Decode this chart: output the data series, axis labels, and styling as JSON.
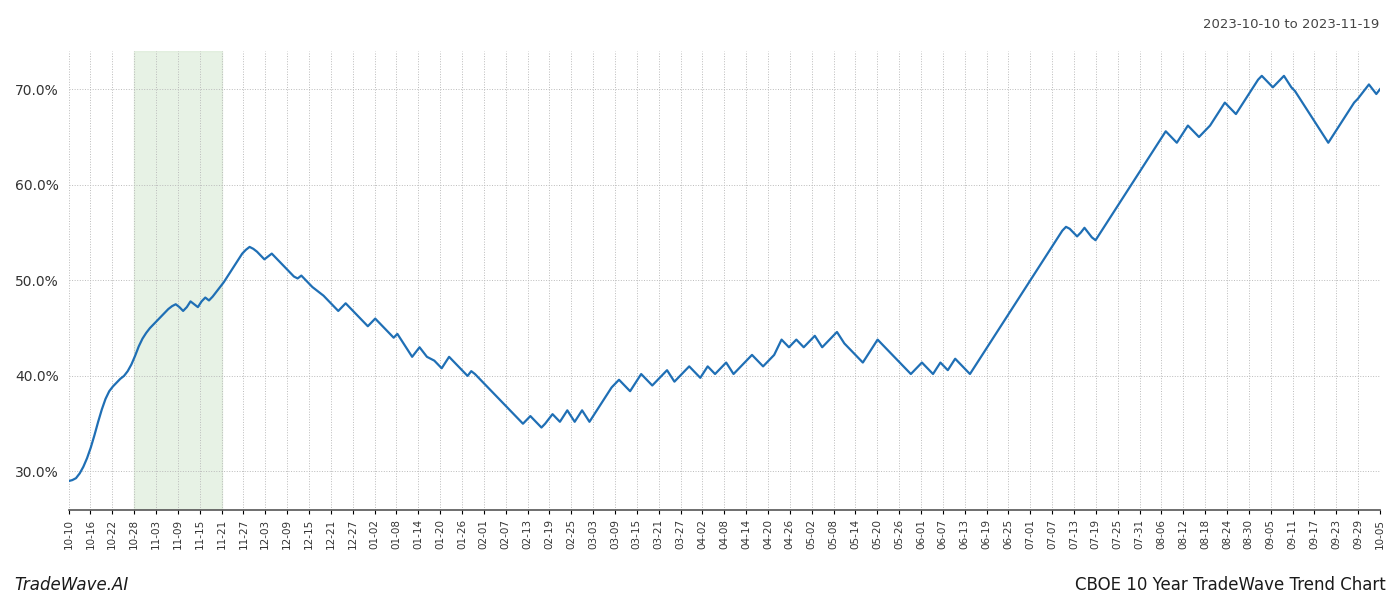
{
  "title_top_right": "2023-10-10 to 2023-11-19",
  "title_bottom_left": "TradeWave.AI",
  "title_bottom_right": "CBOE 10 Year TradeWave Trend Chart",
  "line_color": "#1f6fb5",
  "line_width": 1.6,
  "background_color": "#ffffff",
  "grid_color": "#bbbbbb",
  "shade_color": "#d5e8d0",
  "shade_alpha": 0.55,
  "ylim": [
    26.0,
    74.0
  ],
  "y_ticks": [
    30.0,
    40.0,
    50.0,
    60.0,
    70.0
  ],
  "x_labels": [
    "10-10",
    "10-16",
    "10-22",
    "10-28",
    "11-03",
    "11-09",
    "11-15",
    "11-21",
    "11-27",
    "12-03",
    "12-09",
    "12-15",
    "12-21",
    "12-27",
    "01-02",
    "01-08",
    "01-14",
    "01-20",
    "01-26",
    "02-01",
    "02-07",
    "02-13",
    "02-19",
    "02-25",
    "03-03",
    "03-09",
    "03-15",
    "03-21",
    "03-27",
    "04-02",
    "04-08",
    "04-14",
    "04-20",
    "04-26",
    "05-02",
    "05-08",
    "05-14",
    "05-20",
    "05-26",
    "06-01",
    "06-07",
    "06-13",
    "06-19",
    "06-25",
    "07-01",
    "07-07",
    "07-13",
    "07-19",
    "07-25",
    "07-31",
    "08-06",
    "08-12",
    "08-18",
    "08-24",
    "08-30",
    "09-05",
    "09-11",
    "09-17",
    "09-23",
    "09-29",
    "10-05"
  ],
  "shade_x_start_label": "10-28",
  "shade_x_end_label": "11-21",
  "y_values": [
    29.0,
    29.1,
    29.3,
    29.8,
    30.5,
    31.4,
    32.5,
    33.8,
    35.2,
    36.5,
    37.6,
    38.4,
    38.9,
    39.3,
    39.7,
    40.0,
    40.5,
    41.2,
    42.1,
    43.1,
    43.9,
    44.5,
    45.0,
    45.4,
    45.8,
    46.2,
    46.6,
    47.0,
    47.3,
    47.5,
    47.2,
    46.8,
    47.2,
    47.8,
    47.5,
    47.2,
    47.8,
    48.2,
    47.9,
    48.3,
    48.8,
    49.3,
    49.8,
    50.4,
    51.0,
    51.6,
    52.2,
    52.8,
    53.2,
    53.5,
    53.3,
    53.0,
    52.6,
    52.2,
    52.5,
    52.8,
    52.4,
    52.0,
    51.6,
    51.2,
    50.8,
    50.4,
    50.2,
    50.5,
    50.1,
    49.7,
    49.3,
    49.0,
    48.7,
    48.4,
    48.0,
    47.6,
    47.2,
    46.8,
    47.2,
    47.6,
    47.2,
    46.8,
    46.4,
    46.0,
    45.6,
    45.2,
    45.6,
    46.0,
    45.6,
    45.2,
    44.8,
    44.4,
    44.0,
    44.4,
    43.8,
    43.2,
    42.6,
    42.0,
    42.5,
    43.0,
    42.5,
    42.0,
    41.8,
    41.6,
    41.2,
    40.8,
    41.4,
    42.0,
    41.6,
    41.2,
    40.8,
    40.4,
    40.0,
    40.5,
    40.2,
    39.8,
    39.4,
    39.0,
    38.6,
    38.2,
    37.8,
    37.4,
    37.0,
    36.6,
    36.2,
    35.8,
    35.4,
    35.0,
    35.4,
    35.8,
    35.4,
    35.0,
    34.6,
    35.0,
    35.5,
    36.0,
    35.6,
    35.2,
    35.8,
    36.4,
    35.8,
    35.2,
    35.8,
    36.4,
    35.8,
    35.2,
    35.8,
    36.4,
    37.0,
    37.6,
    38.2,
    38.8,
    39.2,
    39.6,
    39.2,
    38.8,
    38.4,
    39.0,
    39.6,
    40.2,
    39.8,
    39.4,
    39.0,
    39.4,
    39.8,
    40.2,
    40.6,
    40.0,
    39.4,
    39.8,
    40.2,
    40.6,
    41.0,
    40.6,
    40.2,
    39.8,
    40.4,
    41.0,
    40.6,
    40.2,
    40.6,
    41.0,
    41.4,
    40.8,
    40.2,
    40.6,
    41.0,
    41.4,
    41.8,
    42.2,
    41.8,
    41.4,
    41.0,
    41.4,
    41.8,
    42.2,
    43.0,
    43.8,
    43.4,
    43.0,
    43.4,
    43.8,
    43.4,
    43.0,
    43.4,
    43.8,
    44.2,
    43.6,
    43.0,
    43.4,
    43.8,
    44.2,
    44.6,
    44.0,
    43.4,
    43.0,
    42.6,
    42.2,
    41.8,
    41.4,
    42.0,
    42.6,
    43.2,
    43.8,
    43.4,
    43.0,
    42.6,
    42.2,
    41.8,
    41.4,
    41.0,
    40.6,
    40.2,
    40.6,
    41.0,
    41.4,
    41.0,
    40.6,
    40.2,
    40.8,
    41.4,
    41.0,
    40.6,
    41.2,
    41.8,
    41.4,
    41.0,
    40.6,
    40.2,
    40.8,
    41.4,
    42.0,
    42.6,
    43.2,
    43.8,
    44.4,
    45.0,
    45.6,
    46.2,
    46.8,
    47.4,
    48.0,
    48.6,
    49.2,
    49.8,
    50.4,
    51.0,
    51.6,
    52.2,
    52.8,
    53.4,
    54.0,
    54.6,
    55.2,
    55.6,
    55.4,
    55.0,
    54.6,
    55.0,
    55.5,
    55.0,
    54.5,
    54.2,
    54.8,
    55.4,
    56.0,
    56.6,
    57.2,
    57.8,
    58.4,
    59.0,
    59.6,
    60.2,
    60.8,
    61.4,
    62.0,
    62.6,
    63.2,
    63.8,
    64.4,
    65.0,
    65.6,
    65.2,
    64.8,
    64.4,
    65.0,
    65.6,
    66.2,
    65.8,
    65.4,
    65.0,
    65.4,
    65.8,
    66.2,
    66.8,
    67.4,
    68.0,
    68.6,
    68.2,
    67.8,
    67.4,
    68.0,
    68.6,
    69.2,
    69.8,
    70.4,
    71.0,
    71.4,
    71.0,
    70.6,
    70.2,
    70.6,
    71.0,
    71.4,
    70.8,
    70.2,
    69.8,
    69.2,
    68.6,
    68.0,
    67.4,
    66.8,
    66.2,
    65.6,
    65.0,
    64.4,
    65.0,
    65.6,
    66.2,
    66.8,
    67.4,
    68.0,
    68.6,
    69.0,
    69.5,
    70.0,
    70.5,
    70.0,
    69.5,
    70.0
  ]
}
